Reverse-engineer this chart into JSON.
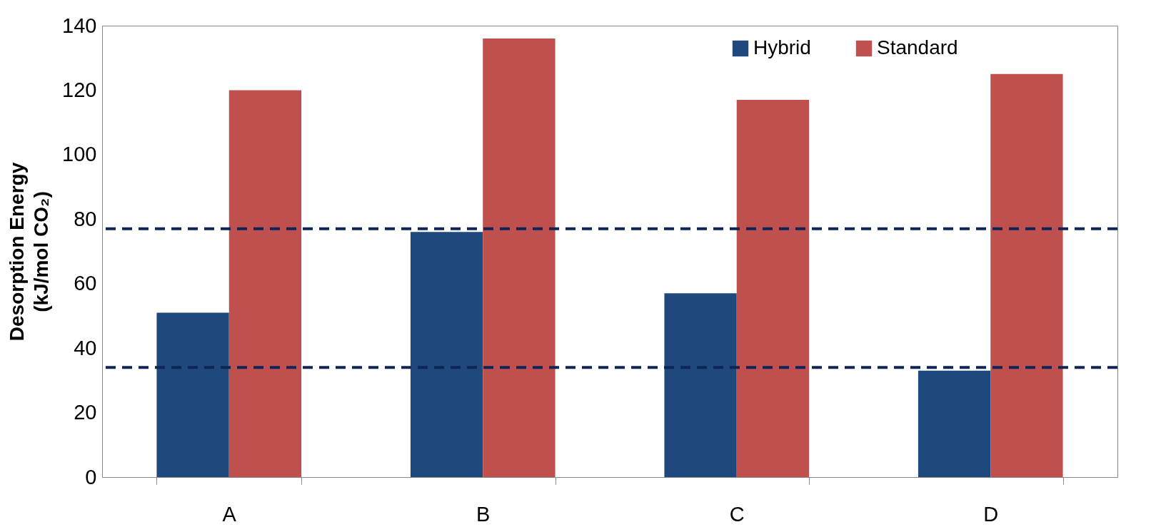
{
  "chart_data": {
    "type": "bar",
    "ylabel": "Desorption Energy\n(kJ/mol CO₂)",
    "categories": [
      "A",
      "B",
      "C",
      "D"
    ],
    "series": [
      {
        "name": "Hybrid",
        "color": "#1f497d",
        "values": [
          51,
          76,
          57,
          33
        ]
      },
      {
        "name": "Standard",
        "color": "#c0504d",
        "values": [
          120,
          136,
          117,
          125
        ]
      }
    ],
    "ylim": [
      0,
      140
    ],
    "yticks": [
      0,
      20,
      40,
      60,
      80,
      100,
      120,
      140
    ],
    "grid": false,
    "legend": "top right",
    "ref_lines": [
      {
        "axis": "y",
        "value": 77,
        "color": "#0f2557",
        "line_style": "dashed"
      },
      {
        "axis": "y",
        "value": 34,
        "color": "#0f2557",
        "line_style": "dashed"
      }
    ]
  }
}
